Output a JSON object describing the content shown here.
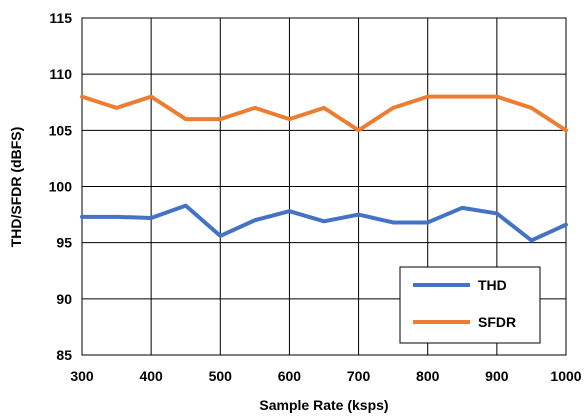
{
  "chart_data": {
    "type": "line",
    "title": "",
    "xlabel": "Sample Rate (ksps)",
    "ylabel": "THD/SFDR (dBFS)",
    "xlim": [
      300,
      1000
    ],
    "ylim": [
      85,
      115
    ],
    "xticks": [
      300,
      400,
      500,
      600,
      700,
      800,
      900,
      1000
    ],
    "yticks": [
      85,
      90,
      95,
      100,
      105,
      110,
      115
    ],
    "grid": true,
    "legend_position": "bottom-right",
    "x": [
      300,
      350,
      400,
      450,
      500,
      550,
      600,
      650,
      700,
      750,
      800,
      850,
      900,
      950,
      1000
    ],
    "series": [
      {
        "name": "THD",
        "color": "#4472C4",
        "values": [
          97.3,
          97.3,
          97.2,
          98.3,
          95.6,
          97.0,
          97.8,
          96.9,
          97.5,
          96.8,
          96.8,
          98.1,
          97.6,
          95.2,
          96.6
        ]
      },
      {
        "name": "SFDR",
        "color": "#ED7D31",
        "values": [
          108,
          107,
          108,
          106,
          106,
          107,
          106,
          107,
          105,
          107,
          108,
          108,
          108,
          107,
          105
        ]
      }
    ]
  }
}
